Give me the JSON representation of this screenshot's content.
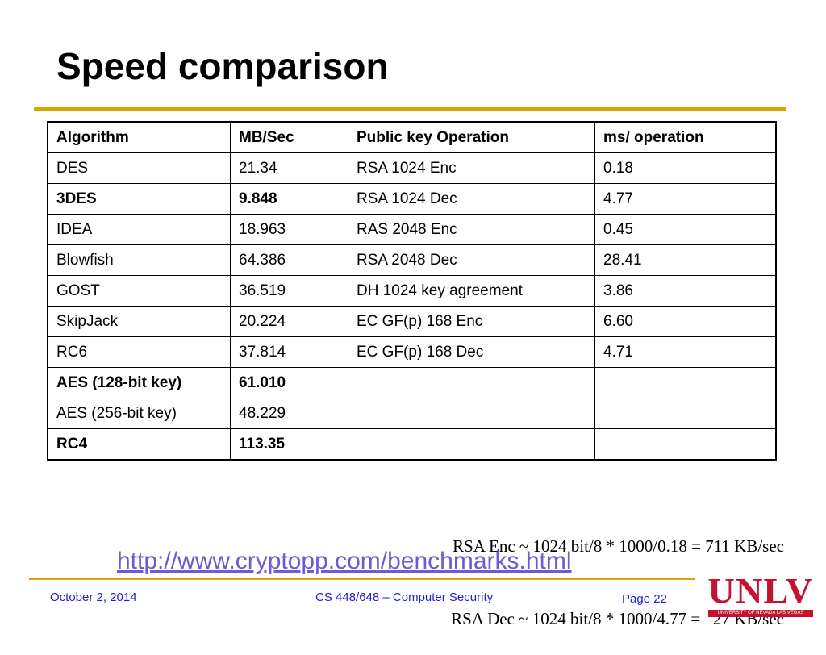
{
  "slide": {
    "title": "Speed comparison",
    "table": {
      "headers": [
        "Algorithm",
        "MB/Sec",
        "Public key Operation",
        "ms/ operation"
      ],
      "rows": [
        [
          "DES",
          "21.34",
          "RSA 1024 Enc",
          "0.18"
        ],
        [
          "3DES",
          "9.848",
          "RSA 1024 Dec",
          "4.77"
        ],
        [
          "IDEA",
          "18.963",
          "RAS 2048 Enc",
          "0.45"
        ],
        [
          "Blowfish",
          "64.386",
          "RSA 2048 Dec",
          "28.41"
        ],
        [
          "GOST",
          "36.519",
          "DH 1024 key agreement",
          "3.86"
        ],
        [
          "SkipJack",
          "20.224",
          "EC GF(p) 168 Enc",
          "6.60"
        ],
        [
          "RC6",
          "37.814",
          "EC GF(p) 168 Dec",
          "4.71"
        ],
        [
          "AES (128-bit key)",
          "61.010",
          "",
          ""
        ],
        [
          "AES (256-bit key)",
          "48.229",
          "",
          ""
        ],
        [
          "RC4",
          "113.35",
          "",
          ""
        ]
      ]
    },
    "calc_lines": [
      "RSA Enc ~ 1024 bit/8 * 1000/0.18 = 711 KB/sec",
      "RSA Dec ~ 1024 bit/8 * 1000/4.77 =   27 KB/sec"
    ],
    "link": "http://www.cryptopp.com/benchmarks.html"
  },
  "footer": {
    "date": "October 2, 2014",
    "course": "CS 448/648 – Computer Security",
    "page": "Page 22"
  },
  "logo": {
    "text": "UNLV",
    "subtext": "UNIVERSITY OF NEVADA LAS VEGAS"
  },
  "colors": {
    "accent_rule": "#d4a800",
    "footer_text": "#1f1fcc",
    "link": "#6b5bd6",
    "logo_red": "#c41230"
  }
}
